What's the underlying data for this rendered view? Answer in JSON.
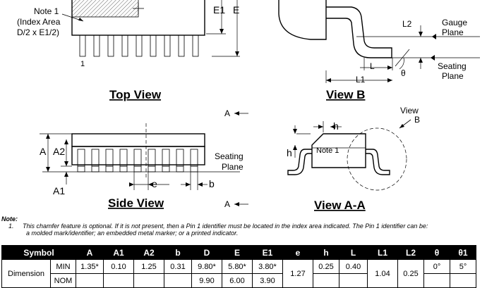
{
  "top_view": {
    "title": "Top View",
    "note_label": "Note 1",
    "note_line2": "(Index Area",
    "note_line3": "D/2 x E1/2)",
    "pin1": "1",
    "e1": "E1",
    "e": "E"
  },
  "view_b": {
    "title": "View B",
    "l2": "L2",
    "gauge1": "Gauge",
    "gauge2": "Plane",
    "l": "L",
    "theta": "θ",
    "seating1": "Seating",
    "seating2": "Plane",
    "l1": "L1"
  },
  "side_view": {
    "title": "Side View",
    "a": "A",
    "a2": "A2",
    "a1": "A1",
    "e": "e",
    "b": "b",
    "seating1": "Seating",
    "seating2": "Plane",
    "section_a_top": "A",
    "section_a_bottom": "A"
  },
  "view_aa": {
    "title": "View A-A",
    "h_top": "h",
    "h_side": "h",
    "note": "Note 1",
    "view_b1": "View",
    "view_b2": "B"
  },
  "notes": {
    "heading": "Note:",
    "number": "1.",
    "line1": "This chamfer feature is optional. If it is not present, then a Pin 1 identifier must be located in the index area indicated. The Pin 1 identifier can be:",
    "line2": "a molded mark/identifier; an embedded metal marker; or a printed indicator."
  },
  "table": {
    "headers": [
      "Symbol",
      "A",
      "A1",
      "A2",
      "b",
      "D",
      "E",
      "E1",
      "e",
      "h",
      "L",
      "L1",
      "L2",
      "θ",
      "θ1"
    ],
    "dimension_label": "Dimension",
    "rows": [
      {
        "label": "MIN",
        "cells": [
          "1.35*",
          "0.10",
          "1.25",
          "0.31",
          "9.80*",
          "5.80*",
          "3.80*",
          "",
          "0.25",
          "0.40",
          "",
          "",
          "0°",
          "5°"
        ]
      },
      {
        "label": "NOM",
        "cells": [
          "",
          "",
          "",
          "",
          "9.90",
          "6.00",
          "3.90",
          "",
          "",
          "",
          "",
          "",
          "",
          ""
        ]
      }
    ],
    "e_value": "1.27",
    "l1_value": "1.04",
    "l2_value": "0.25"
  }
}
